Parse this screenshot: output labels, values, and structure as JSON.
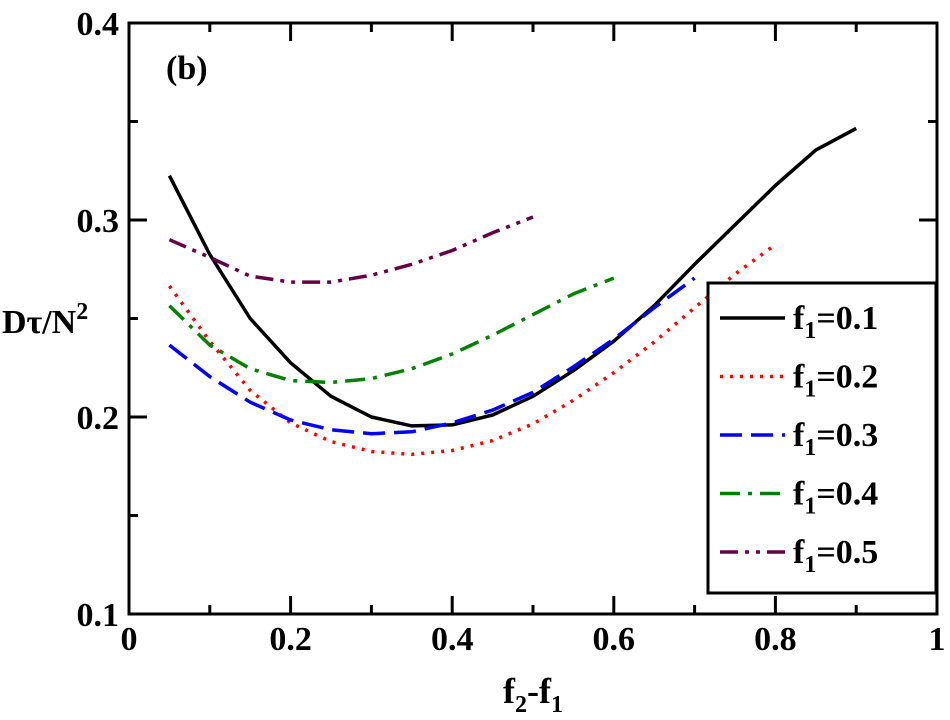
{
  "chart_data": {
    "type": "line",
    "panel_label": "(b)",
    "xlabel": {
      "main": "f",
      "sub1": "2",
      "mid": "-f",
      "sub2": "1"
    },
    "ylabel": {
      "main": "Dτ/N",
      "sup": "2"
    },
    "xlim": [
      0,
      1
    ],
    "ylim": [
      0.1,
      0.4
    ],
    "x_ticks": [
      "0",
      "0.2",
      "0.4",
      "0.6",
      "0.8",
      "1"
    ],
    "y_ticks": [
      "0.1",
      "0.2",
      "0.3",
      "0.4"
    ],
    "legend_position": "right",
    "series": [
      {
        "name": "f1=0.1",
        "label_main": "f",
        "label_sub": "1",
        "label_val": "=0.1",
        "color": "#000000",
        "style": "solid",
        "x": [
          0.05,
          0.1,
          0.15,
          0.2,
          0.25,
          0.3,
          0.35,
          0.4,
          0.45,
          0.5,
          0.55,
          0.6,
          0.65,
          0.7,
          0.75,
          0.8,
          0.85,
          0.9
        ],
        "y": [
          0.3225,
          0.2825,
          0.25,
          0.2275,
          0.2105,
          0.2,
          0.1955,
          0.196,
          0.201,
          0.2105,
          0.2235,
          0.2385,
          0.2565,
          0.2775,
          0.2975,
          0.3175,
          0.3355,
          0.3465
        ]
      },
      {
        "name": "f1=0.2",
        "label_main": "f",
        "label_sub": "1",
        "label_val": "=0.2",
        "color": "#ff0000",
        "style": "dotted",
        "x": [
          0.05,
          0.1,
          0.15,
          0.2,
          0.25,
          0.3,
          0.35,
          0.4,
          0.45,
          0.5,
          0.55,
          0.6,
          0.65,
          0.7,
          0.75,
          0.8
        ],
        "y": [
          0.2665,
          0.2385,
          0.2135,
          0.197,
          0.1875,
          0.1825,
          0.181,
          0.183,
          0.188,
          0.1965,
          0.2085,
          0.2225,
          0.238,
          0.2555,
          0.2725,
          0.2875
        ]
      },
      {
        "name": "f1=0.3",
        "label_main": "f",
        "label_sub": "1",
        "label_val": "=0.3",
        "color": "#0000ff",
        "style": "dashed",
        "x": [
          0.05,
          0.1,
          0.15,
          0.2,
          0.25,
          0.3,
          0.35,
          0.4,
          0.45,
          0.5,
          0.55,
          0.6,
          0.65,
          0.7
        ],
        "y": [
          0.2365,
          0.2205,
          0.2075,
          0.1985,
          0.1935,
          0.1915,
          0.1925,
          0.197,
          0.2035,
          0.2125,
          0.2255,
          0.2395,
          0.2555,
          0.2705
        ]
      },
      {
        "name": "f1=0.4",
        "label_main": "f",
        "label_sub": "1",
        "label_val": "=0.4",
        "color": "#008000",
        "style": "dashdot",
        "x": [
          0.05,
          0.1,
          0.15,
          0.2,
          0.25,
          0.3,
          0.35,
          0.4,
          0.45,
          0.5,
          0.55,
          0.6
        ],
        "y": [
          0.2565,
          0.2365,
          0.2245,
          0.2185,
          0.2175,
          0.2195,
          0.2245,
          0.232,
          0.2415,
          0.252,
          0.2625,
          0.2705
        ]
      },
      {
        "name": "f1=0.5",
        "label_main": "f",
        "label_sub": "1",
        "label_val": "=0.5",
        "color": "#660044",
        "style": "dashdotdot",
        "x": [
          0.05,
          0.1,
          0.15,
          0.2,
          0.25,
          0.3,
          0.35,
          0.4,
          0.45,
          0.5
        ],
        "y": [
          0.29,
          0.281,
          0.2715,
          0.2685,
          0.2685,
          0.272,
          0.2775,
          0.2845,
          0.2935,
          0.3015
        ]
      }
    ]
  }
}
